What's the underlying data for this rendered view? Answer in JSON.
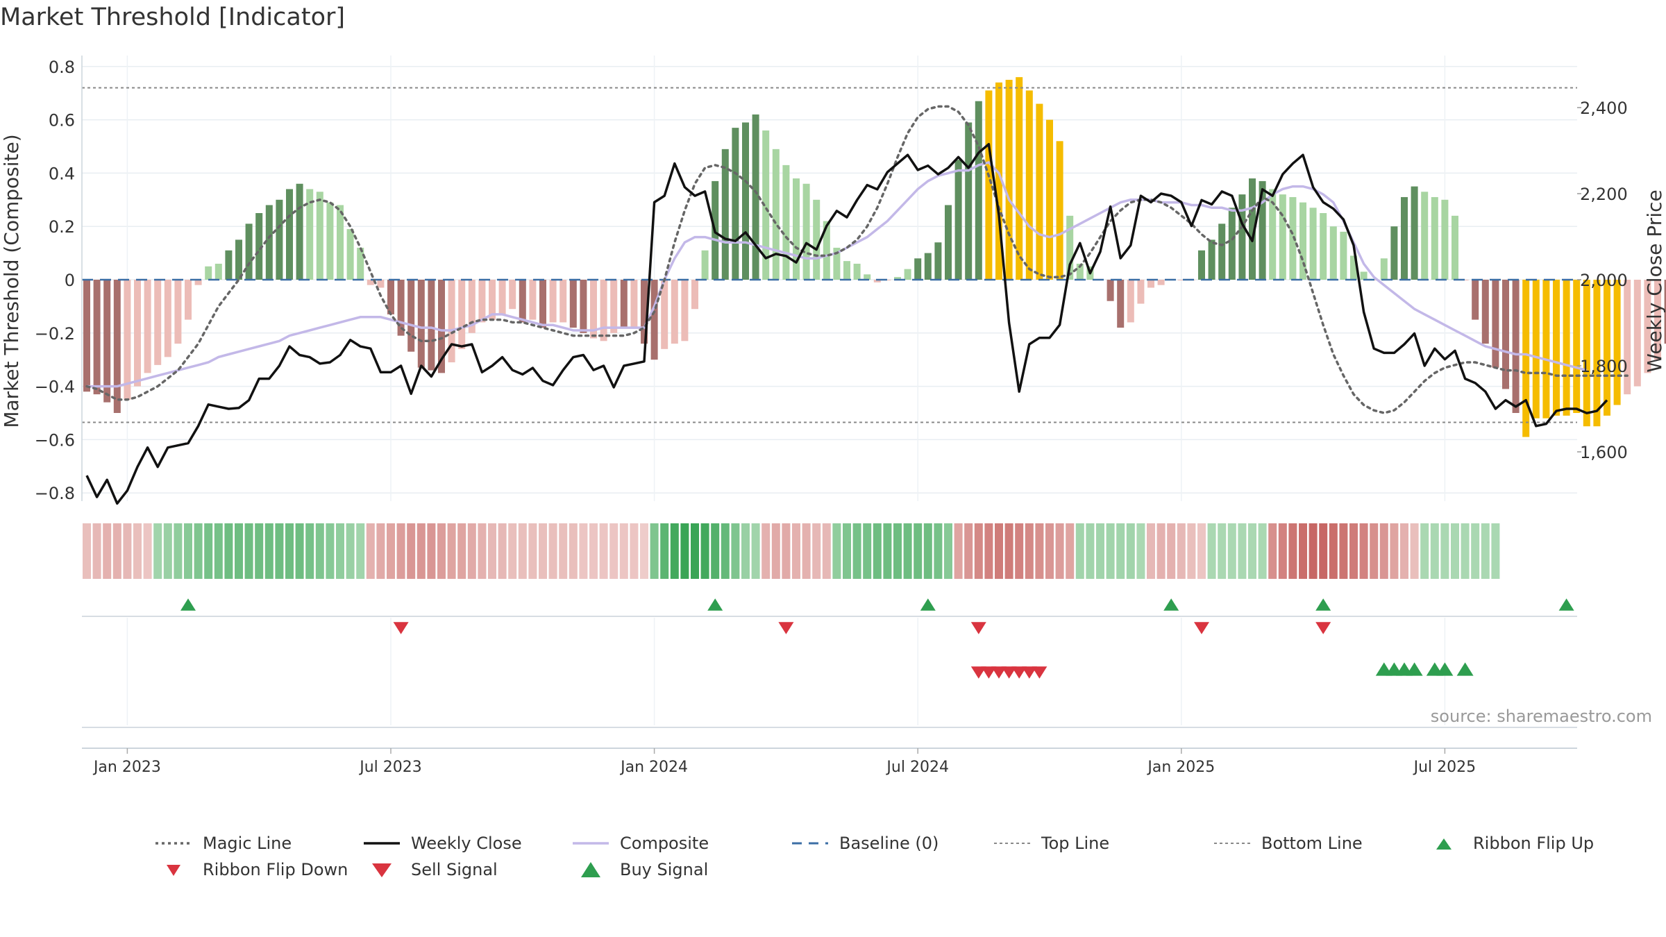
{
  "title": "Market Threshold [Indicator]",
  "source_note": "source: sharemaestro.com",
  "colors": {
    "bar_dark_green": "#5f8f5f",
    "bar_light_green": "#a8d5a2",
    "bar_dark_red": "#a8706d",
    "bar_light_red": "#ecbcb7",
    "bar_gold": "#f5bc00",
    "close_line": "#111111",
    "composite_line": "#c3b8e8",
    "magic_line": "#666666",
    "baseline": "#3b6ea5",
    "threshold_lines": "#888888",
    "buy_signal": "#2e9e4f",
    "sell_signal": "#d9343f"
  },
  "chart_data": {
    "type": "bar+line",
    "title": "Market Threshold [Indicator]",
    "ylabel_left": "Market Threshold (Composite)",
    "ylabel_right": "Weekly Close Price",
    "ylim_left": [
      -0.85,
      0.85
    ],
    "ylim_right": [
      1400,
      2450
    ],
    "y_ticks_left": [
      "0.8",
      "0.6",
      "0.4",
      "0.2",
      "0",
      "−0.2",
      "−0.4",
      "−0.6",
      "−0.8"
    ],
    "y_tick_values_left": [
      0.8,
      0.6,
      0.4,
      0.2,
      0,
      -0.2,
      -0.4,
      -0.6,
      -0.8
    ],
    "y_ticks_right": [
      "2,400",
      "2,200",
      "2,000",
      "1,800",
      "1,600"
    ],
    "y_tick_values_right": [
      2400,
      2200,
      2000,
      1800,
      1600
    ],
    "x_ticks": [
      "Jan 2023",
      "Jul 2023",
      "Jan 2024",
      "Jul 2024",
      "Jan 2025",
      "Jul 2025"
    ],
    "x_tick_weeks": [
      4,
      30,
      56,
      82,
      108,
      134
    ],
    "top_line": 0.72,
    "bottom_line": -0.535,
    "baseline": 0,
    "composite_bars": [
      -0.42,
      -0.43,
      -0.46,
      -0.5,
      -0.45,
      -0.4,
      -0.35,
      -0.32,
      -0.29,
      -0.24,
      -0.15,
      -0.02,
      0.05,
      0.06,
      0.11,
      0.15,
      0.21,
      0.25,
      0.28,
      0.3,
      0.34,
      0.36,
      0.34,
      0.33,
      0.29,
      0.28,
      0.19,
      0.12,
      -0.02,
      -0.03,
      -0.13,
      -0.21,
      -0.27,
      -0.33,
      -0.34,
      -0.35,
      -0.31,
      -0.26,
      -0.2,
      -0.16,
      -0.15,
      -0.13,
      -0.11,
      -0.16,
      -0.15,
      -0.18,
      -0.16,
      -0.16,
      -0.18,
      -0.2,
      -0.22,
      -0.23,
      -0.2,
      -0.18,
      -0.18,
      -0.24,
      -0.3,
      -0.26,
      -0.24,
      -0.23,
      -0.11,
      0.11,
      0.37,
      0.49,
      0.57,
      0.59,
      0.62,
      0.56,
      0.49,
      0.43,
      0.38,
      0.36,
      0.3,
      0.22,
      0.12,
      0.07,
      0.06,
      0.02,
      -0.01,
      0.0,
      0.01,
      0.04,
      0.08,
      0.1,
      0.14,
      0.28,
      0.45,
      0.59,
      0.67,
      0.71,
      0.74,
      0.75,
      0.76,
      0.71,
      0.66,
      0.6,
      0.52,
      0.24,
      0.06,
      0.05,
      0.0,
      -0.08,
      -0.18,
      -0.16,
      -0.09,
      -0.03,
      -0.02,
      0.0,
      0.0,
      0.0,
      0.11,
      0.15,
      0.21,
      0.27,
      0.32,
      0.38,
      0.37,
      0.34,
      0.32,
      0.31,
      0.29,
      0.27,
      0.25,
      0.2,
      0.18,
      0.09,
      0.03,
      0.0,
      0.08,
      0.2,
      0.31,
      0.35,
      0.33,
      0.31,
      0.3,
      0.24,
      0.0,
      -0.15,
      -0.24,
      -0.33,
      -0.41,
      -0.5,
      -0.59,
      -0.52,
      -0.52,
      -0.51,
      -0.51,
      -0.5,
      -0.55,
      -0.55,
      -0.51,
      -0.47,
      -0.43,
      -0.4,
      -0.35,
      -0.3,
      -0.24,
      -0.3,
      -0.32,
      -0.33,
      -0.34
    ],
    "bar_kinds": [
      "dr",
      "dr",
      "dr",
      "dr",
      "lr",
      "lr",
      "lr",
      "lr",
      "lr",
      "lr",
      "lr",
      "lr",
      "lg",
      "lg",
      "dg",
      "dg",
      "dg",
      "dg",
      "dg",
      "dg",
      "dg",
      "dg",
      "lg",
      "lg",
      "lg",
      "lg",
      "lg",
      "lg",
      "lr",
      "lr",
      "dr",
      "dr",
      "dr",
      "dr",
      "dr",
      "dr",
      "lr",
      "lr",
      "lr",
      "lr",
      "lr",
      "lr",
      "lr",
      "dr",
      "lr",
      "dr",
      "lr",
      "lr",
      "dr",
      "dr",
      "lr",
      "lr",
      "lr",
      "dr",
      "lr",
      "dr",
      "dr",
      "lr",
      "lr",
      "lr",
      "lr",
      "lg",
      "dg",
      "dg",
      "dg",
      "dg",
      "dg",
      "lg",
      "lg",
      "lg",
      "lg",
      "lg",
      "lg",
      "lg",
      "lg",
      "lg",
      "lg",
      "lg",
      "lr",
      "lr",
      "lg",
      "lg",
      "dg",
      "dg",
      "dg",
      "dg",
      "dg",
      "dg",
      "dg",
      "go",
      "go",
      "go",
      "go",
      "go",
      "go",
      "go",
      "go",
      "lg",
      "lg",
      "lg",
      "lg",
      "dr",
      "dr",
      "lr",
      "lr",
      "lr",
      "lr",
      "lr",
      "lr",
      "lr",
      "dg",
      "dg",
      "dg",
      "dg",
      "dg",
      "dg",
      "dg",
      "lg",
      "lg",
      "lg",
      "lg",
      "lg",
      "lg",
      "lg",
      "lg",
      "lg",
      "lg",
      "lr",
      "lg",
      "dg",
      "dg",
      "dg",
      "lg",
      "lg",
      "lg",
      "lg",
      "lr",
      "dr",
      "dr",
      "dr",
      "dr",
      "dr",
      "go",
      "go",
      "go",
      "go",
      "go",
      "go",
      "go",
      "go",
      "go",
      "go",
      "lr",
      "lr",
      "lr",
      "lr",
      "dr",
      "dr",
      "dr",
      "dr"
    ],
    "weekly_close": [
      1545,
      1495,
      1535,
      1480,
      1510,
      1565,
      1610,
      1565,
      1610,
      1615,
      1620,
      1660,
      1710,
      1705,
      1700,
      1702,
      1720,
      1770,
      1770,
      1800,
      1845,
      1825,
      1820,
      1805,
      1808,
      1825,
      1860,
      1845,
      1840,
      1785,
      1785,
      1800,
      1735,
      1800,
      1775,
      1815,
      1850,
      1845,
      1850,
      1785,
      1800,
      1820,
      1790,
      1780,
      1795,
      1765,
      1755,
      1790,
      1820,
      1825,
      1790,
      1800,
      1750,
      1800,
      1805,
      1810,
      2180,
      2195,
      2270,
      2215,
      2195,
      2205,
      2110,
      2095,
      2090,
      2110,
      2080,
      2050,
      2060,
      2055,
      2040,
      2085,
      2070,
      2125,
      2160,
      2145,
      2185,
      2220,
      2210,
      2250,
      2270,
      2290,
      2255,
      2265,
      2245,
      2260,
      2285,
      2260,
      2295,
      2315,
      2150,
      1900,
      1740,
      1850,
      1865,
      1865,
      1895,
      2035,
      2085,
      2015,
      2065,
      2170,
      2050,
      2080,
      2195,
      2180,
      2200,
      2195,
      2180,
      2125,
      2185,
      2175,
      2205,
      2195,
      2130,
      2090,
      2210,
      2195,
      2245,
      2270,
      2290,
      2215,
      2180,
      2165,
      2140,
      2080,
      1925,
      1840,
      1830,
      1830,
      1850,
      1875,
      1800,
      1840,
      1815,
      1835,
      1770,
      1760,
      1740,
      1700,
      1720,
      1705,
      1720,
      1660,
      1665,
      1695,
      1700,
      1700,
      1690,
      1695,
      1720
    ],
    "composite_line": [
      -0.4,
      -0.4,
      -0.4,
      -0.4,
      -0.39,
      -0.38,
      -0.37,
      -0.36,
      -0.35,
      -0.34,
      -0.33,
      -0.32,
      -0.31,
      -0.29,
      -0.28,
      -0.27,
      -0.26,
      -0.25,
      -0.24,
      -0.23,
      -0.21,
      -0.2,
      -0.19,
      -0.18,
      -0.17,
      -0.16,
      -0.15,
      -0.14,
      -0.14,
      -0.14,
      -0.15,
      -0.16,
      -0.17,
      -0.18,
      -0.18,
      -0.19,
      -0.19,
      -0.18,
      -0.17,
      -0.15,
      -0.13,
      -0.13,
      -0.14,
      -0.15,
      -0.16,
      -0.17,
      -0.17,
      -0.18,
      -0.19,
      -0.19,
      -0.19,
      -0.18,
      -0.18,
      -0.18,
      -0.18,
      -0.18,
      -0.1,
      0.0,
      0.08,
      0.14,
      0.16,
      0.16,
      0.15,
      0.14,
      0.14,
      0.14,
      0.13,
      0.12,
      0.11,
      0.1,
      0.09,
      0.08,
      0.08,
      0.09,
      0.1,
      0.12,
      0.14,
      0.16,
      0.19,
      0.22,
      0.26,
      0.3,
      0.34,
      0.37,
      0.39,
      0.4,
      0.41,
      0.41,
      0.43,
      0.44,
      0.4,
      0.3,
      0.25,
      0.2,
      0.17,
      0.16,
      0.17,
      0.19,
      0.21,
      0.23,
      0.25,
      0.27,
      0.29,
      0.3,
      0.3,
      0.3,
      0.29,
      0.29,
      0.29,
      0.28,
      0.28,
      0.27,
      0.27,
      0.26,
      0.26,
      0.27,
      0.29,
      0.32,
      0.34,
      0.35,
      0.35,
      0.34,
      0.32,
      0.29,
      0.22,
      0.14,
      0.06,
      0.01,
      -0.02,
      -0.05,
      -0.08,
      -0.11,
      -0.13,
      -0.15,
      -0.17,
      -0.19,
      -0.21,
      -0.23,
      -0.25,
      -0.26,
      -0.27,
      -0.28,
      -0.28,
      -0.29,
      -0.3,
      -0.31,
      -0.32,
      -0.33,
      -0.34
    ],
    "magic_line": [
      -0.4,
      -0.41,
      -0.43,
      -0.45,
      -0.45,
      -0.44,
      -0.42,
      -0.4,
      -0.37,
      -0.34,
      -0.29,
      -0.24,
      -0.17,
      -0.1,
      -0.05,
      0.0,
      0.06,
      0.11,
      0.16,
      0.2,
      0.24,
      0.27,
      0.29,
      0.3,
      0.29,
      0.26,
      0.2,
      0.12,
      0.03,
      -0.06,
      -0.13,
      -0.18,
      -0.21,
      -0.23,
      -0.23,
      -0.22,
      -0.2,
      -0.18,
      -0.16,
      -0.15,
      -0.15,
      -0.15,
      -0.16,
      -0.16,
      -0.17,
      -0.18,
      -0.19,
      -0.2,
      -0.21,
      -0.21,
      -0.21,
      -0.21,
      -0.21,
      -0.21,
      -0.2,
      -0.18,
      -0.12,
      0.0,
      0.14,
      0.26,
      0.36,
      0.42,
      0.43,
      0.42,
      0.4,
      0.37,
      0.33,
      0.27,
      0.21,
      0.16,
      0.12,
      0.1,
      0.09,
      0.09,
      0.1,
      0.12,
      0.15,
      0.2,
      0.27,
      0.36,
      0.46,
      0.55,
      0.61,
      0.64,
      0.65,
      0.65,
      0.63,
      0.58,
      0.5,
      0.39,
      0.27,
      0.17,
      0.09,
      0.04,
      0.02,
      0.01,
      0.01,
      0.02,
      0.05,
      0.1,
      0.16,
      0.22,
      0.26,
      0.29,
      0.3,
      0.3,
      0.29,
      0.27,
      0.24,
      0.21,
      0.17,
      0.14,
      0.13,
      0.15,
      0.2,
      0.26,
      0.31,
      0.29,
      0.24,
      0.17,
      0.07,
      -0.05,
      -0.17,
      -0.28,
      -0.36,
      -0.43,
      -0.47,
      -0.49,
      -0.5,
      -0.49,
      -0.46,
      -0.42,
      -0.38,
      -0.35,
      -0.33,
      -0.32,
      -0.31,
      -0.31,
      -0.32,
      -0.33,
      -0.34,
      -0.34,
      -0.35,
      -0.35,
      -0.35,
      -0.36,
      -0.36,
      -0.36,
      -0.36,
      -0.36,
      -0.36,
      -0.36,
      -0.36
    ],
    "ribbon_levels": [
      -0.25,
      -0.3,
      -0.35,
      -0.35,
      -0.3,
      -0.25,
      -0.2,
      0.4,
      0.45,
      0.5,
      0.55,
      0.6,
      0.65,
      0.65,
      0.7,
      0.7,
      0.7,
      0.7,
      0.7,
      0.7,
      0.7,
      0.7,
      0.65,
      0.6,
      0.55,
      0.5,
      0.45,
      0.4,
      -0.35,
      -0.4,
      -0.45,
      -0.5,
      -0.55,
      -0.55,
      -0.55,
      -0.5,
      -0.45,
      -0.45,
      -0.4,
      -0.35,
      -0.3,
      -0.3,
      -0.25,
      -0.25,
      -0.25,
      -0.25,
      -0.25,
      -0.25,
      -0.25,
      -0.2,
      -0.2,
      -0.2,
      -0.2,
      -0.2,
      -0.2,
      -0.15,
      0.6,
      0.8,
      0.95,
      1.0,
      1.0,
      0.95,
      0.85,
      0.75,
      0.6,
      0.45,
      0.4,
      -0.35,
      -0.4,
      -0.4,
      -0.35,
      -0.35,
      -0.3,
      -0.3,
      0.5,
      0.6,
      0.65,
      0.65,
      0.7,
      0.7,
      0.7,
      0.7,
      0.7,
      0.7,
      0.65,
      0.55,
      -0.45,
      -0.55,
      -0.65,
      -0.7,
      -0.75,
      -0.75,
      -0.7,
      -0.65,
      -0.6,
      -0.55,
      -0.5,
      -0.45,
      0.4,
      0.4,
      0.4,
      0.4,
      0.4,
      0.4,
      0.35,
      -0.3,
      -0.35,
      -0.35,
      -0.3,
      -0.25,
      -0.2,
      0.35,
      0.35,
      0.35,
      0.35,
      0.35,
      0.35,
      -0.6,
      -0.7,
      -0.8,
      -0.85,
      -0.9,
      -0.9,
      -0.85,
      -0.8,
      -0.75,
      -0.7,
      -0.6,
      -0.55,
      -0.45,
      -0.35,
      -0.25,
      0.35,
      0.35,
      0.35,
      0.35,
      0.35,
      0.35,
      0.35,
      0.35
    ],
    "ribbon_flip_up_weeks": [
      10,
      62,
      83,
      107,
      122,
      146
    ],
    "ribbon_flip_down_weeks": [
      31,
      69,
      88,
      110,
      122
    ],
    "sell_signal_weeks": [
      88,
      89,
      90,
      91,
      92,
      93,
      94
    ],
    "buy_signal_weeks": [
      128,
      129,
      130,
      131,
      133,
      134,
      136
    ],
    "legend": [
      {
        "label": "Magic Line",
        "symbol": "dotted-line"
      },
      {
        "label": "Weekly Close",
        "symbol": "solid-line"
      },
      {
        "label": "Composite",
        "symbol": "composite-line"
      },
      {
        "label": "Baseline (0)",
        "symbol": "dashed-line"
      },
      {
        "label": "Top Line",
        "symbol": "thin-dotted-line"
      },
      {
        "label": "Bottom Line",
        "symbol": "thin-dotted-line"
      },
      {
        "label": "Ribbon Flip Up",
        "symbol": "up-triangle-icon"
      },
      {
        "label": "Ribbon Flip Down",
        "symbol": "down-triangle-icon"
      },
      {
        "label": "Sell Signal",
        "symbol": "sell-triangle-icon"
      },
      {
        "label": "Buy Signal",
        "symbol": "buy-triangle-icon"
      }
    ]
  }
}
